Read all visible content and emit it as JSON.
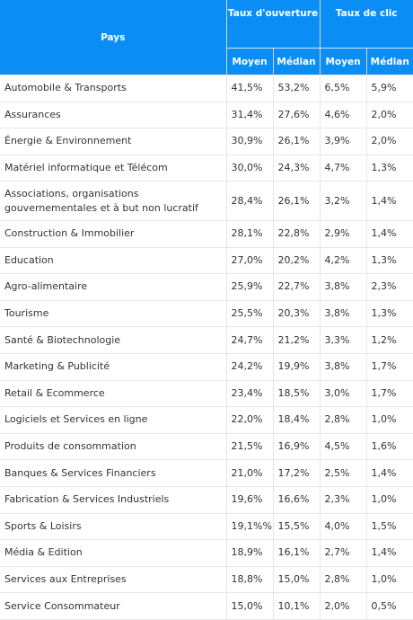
{
  "header": {
    "country_label": "Pays",
    "open_rate_label": "Taux d'ouverture",
    "click_rate_label": "Taux de clic",
    "mean_label": "Moyen",
    "median_label": "Médian"
  },
  "rows": [
    {
      "sector": "Automobile & Transports",
      "open_mean": "41,5%",
      "open_median": "53,2%",
      "click_mean": "6,5%",
      "click_median": "5,9%"
    },
    {
      "sector": "Assurances",
      "open_mean": "31,4%",
      "open_median": "27,6%",
      "click_mean": "4,6%",
      "click_median": "2,0%"
    },
    {
      "sector": "Énergie & Environnement",
      "open_mean": "30,9%",
      "open_median": "26,1%",
      "click_mean": "3,9%",
      "click_median": "2,0%"
    },
    {
      "sector": "Matériel informatique et Télécom",
      "open_mean": "30,0%",
      "open_median": "24,3%",
      "click_mean": "4,7%",
      "click_median": "1,3%"
    },
    {
      "sector": "Associations, organisations gouvernementales et à but non lucratif",
      "open_mean": "28,4%",
      "open_median": "26,1%",
      "click_mean": "3,2%",
      "click_median": "1,4%"
    },
    {
      "sector": "Construction & Immobilier",
      "open_mean": "28,1%",
      "open_median": "22,8%",
      "click_mean": "2,9%",
      "click_median": "1,4%"
    },
    {
      "sector": "Education",
      "open_mean": "27,0%",
      "open_median": "20,2%",
      "click_mean": "4,2%",
      "click_median": "1,3%"
    },
    {
      "sector": "Agro-alimentaire",
      "open_mean": "25,9%",
      "open_median": "22,7%",
      "click_mean": "3,8%",
      "click_median": "2,3%"
    },
    {
      "sector": "Tourisme",
      "open_mean": "25,5%",
      "open_median": "20,3%",
      "click_mean": "3,8%",
      "click_median": "1,3%"
    },
    {
      "sector": "Santé & Biotechnologie",
      "open_mean": "24,7%",
      "open_median": "21,2%",
      "click_mean": "3,3%",
      "click_median": "1,2%"
    },
    {
      "sector": "Marketing & Publicité",
      "open_mean": "24,2%",
      "open_median": "19,9%",
      "click_mean": "3,8%",
      "click_median": "1,7%"
    },
    {
      "sector": "Retail & Ecommerce",
      "open_mean": "23,4%",
      "open_median": "18,5%",
      "click_mean": "3,0%",
      "click_median": "1,7%"
    },
    {
      "sector": "Logiciels et Services en ligne",
      "open_mean": "22,0%",
      "open_median": "18,4%",
      "click_mean": "2,8%",
      "click_median": "1,0%"
    },
    {
      "sector": "Produits de consommation",
      "open_mean": "21,5%",
      "open_median": "16,9%",
      "click_mean": "4,5%",
      "click_median": "1,6%"
    },
    {
      "sector": "Banques & Services Financiers",
      "open_mean": "21,0%",
      "open_median": "17,2%",
      "click_mean": "2,5%",
      "click_median": "1,4%"
    },
    {
      "sector": "Fabrication & Services Industriels",
      "open_mean": "19,6%",
      "open_median": "16,6%",
      "click_mean": "2,3%",
      "click_median": "1,0%"
    },
    {
      "sector": "Sports & Loisirs",
      "open_mean": "19,1%%",
      "open_median": "15,5%",
      "click_mean": "4,0%",
      "click_median": "1,5%"
    },
    {
      "sector": "Média & Edition",
      "open_mean": "18,9%",
      "open_median": "16,1%",
      "click_mean": "2,7%",
      "click_median": "1,4%"
    },
    {
      "sector": "Services aux Entreprises",
      "open_mean": "18,8%",
      "open_median": "15,0%",
      "click_mean": "2,8%",
      "click_median": "1,0%"
    },
    {
      "sector": "Service Consommateur",
      "open_mean": "15,0%",
      "open_median": "10,1%",
      "click_mean": "2,0%",
      "click_median": "0,5%"
    }
  ]
}
